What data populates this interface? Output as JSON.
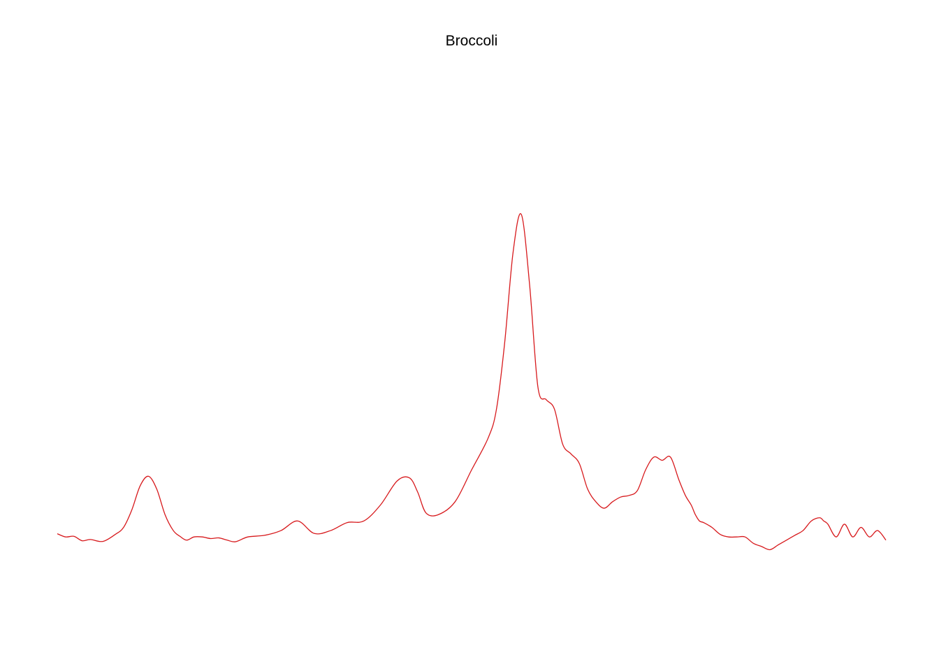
{
  "chart_data": {
    "type": "line",
    "title": "Broccoli",
    "xlabel": "",
    "ylabel": "",
    "axes_visible": false,
    "grid": false,
    "legend": "none",
    "xlim": [
      0,
      1
    ],
    "ylim": [
      -0.2,
      1.4
    ],
    "colors": {
      "series": "#d7191c"
    },
    "series": [
      {
        "x": [
          0.0,
          0.01,
          0.02,
          0.03,
          0.04,
          0.055,
          0.07,
          0.08,
          0.09,
          0.1,
          0.11,
          0.12,
          0.13,
          0.14,
          0.148,
          0.156,
          0.165,
          0.175,
          0.185,
          0.195,
          0.205,
          0.215,
          0.23,
          0.25,
          0.27,
          0.29,
          0.31,
          0.33,
          0.35,
          0.37,
          0.39,
          0.41,
          0.425,
          0.435,
          0.445,
          0.46,
          0.48,
          0.5,
          0.52,
          0.53,
          0.54,
          0.55,
          0.56,
          0.57,
          0.58,
          0.59,
          0.6,
          0.61,
          0.62,
          0.63,
          0.64,
          0.65,
          0.66,
          0.67,
          0.68,
          0.69,
          0.7,
          0.71,
          0.72,
          0.73,
          0.74,
          0.75,
          0.758,
          0.765,
          0.77,
          0.775,
          0.78,
          0.79,
          0.8,
          0.81,
          0.82,
          0.83,
          0.84,
          0.85,
          0.86,
          0.87,
          0.88,
          0.89,
          0.9,
          0.91,
          0.92,
          0.925,
          0.93,
          0.94,
          0.95,
          0.96,
          0.97,
          0.98,
          0.99,
          1.0
        ],
        "y": [
          0.0,
          -0.01,
          -0.008,
          -0.022,
          -0.018,
          -0.024,
          -0.002,
          0.02,
          0.075,
          0.15,
          0.18,
          0.14,
          0.06,
          0.01,
          -0.008,
          -0.02,
          -0.01,
          -0.01,
          -0.015,
          -0.013,
          -0.02,
          -0.025,
          -0.01,
          -0.005,
          0.01,
          0.04,
          0.001,
          0.01,
          0.035,
          0.04,
          0.09,
          0.165,
          0.175,
          0.13,
          0.065,
          0.06,
          0.1,
          0.2,
          0.3,
          0.39,
          0.6,
          0.88,
          1.0,
          0.78,
          0.46,
          0.42,
          0.39,
          0.28,
          0.25,
          0.22,
          0.14,
          0.1,
          0.08,
          0.1,
          0.115,
          0.12,
          0.135,
          0.2,
          0.24,
          0.23,
          0.24,
          0.17,
          0.12,
          0.09,
          0.06,
          0.04,
          0.035,
          0.02,
          -0.002,
          -0.01,
          -0.01,
          -0.01,
          -0.03,
          -0.04,
          -0.05,
          -0.035,
          -0.02,
          -0.005,
          0.01,
          0.04,
          0.05,
          0.04,
          0.03,
          -0.01,
          0.03,
          -0.01,
          0.02,
          -0.01,
          0.01,
          -0.02
        ]
      }
    ]
  }
}
